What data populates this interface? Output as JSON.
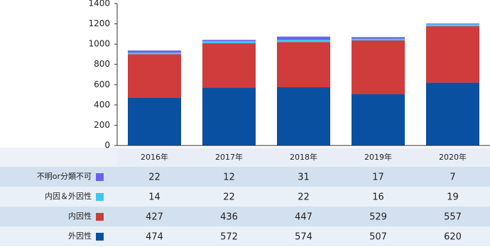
{
  "chart_data": {
    "type": "stacked-bar-table",
    "categories": [
      "2016年",
      "2017年",
      "2018年",
      "2019年",
      "2020年"
    ],
    "series": [
      {
        "name": "不明or分類不可",
        "color": "#6a62ee",
        "values": [
          22,
          12,
          31,
          17,
          7
        ]
      },
      {
        "name": "内因＆外因性",
        "color": "#3ec8f0",
        "values": [
          14,
          22,
          22,
          16,
          19
        ]
      },
      {
        "name": "内因性",
        "color": "#d03c3c",
        "values": [
          427,
          436,
          447,
          529,
          557
        ]
      },
      {
        "name": "外因性",
        "color": "#0a50a0",
        "values": [
          474,
          572,
          574,
          507,
          620
        ]
      }
    ],
    "ylim": [
      0,
      1400
    ],
    "yticks": [
      0,
      200,
      400,
      600,
      800,
      1000,
      1200,
      1400
    ]
  }
}
